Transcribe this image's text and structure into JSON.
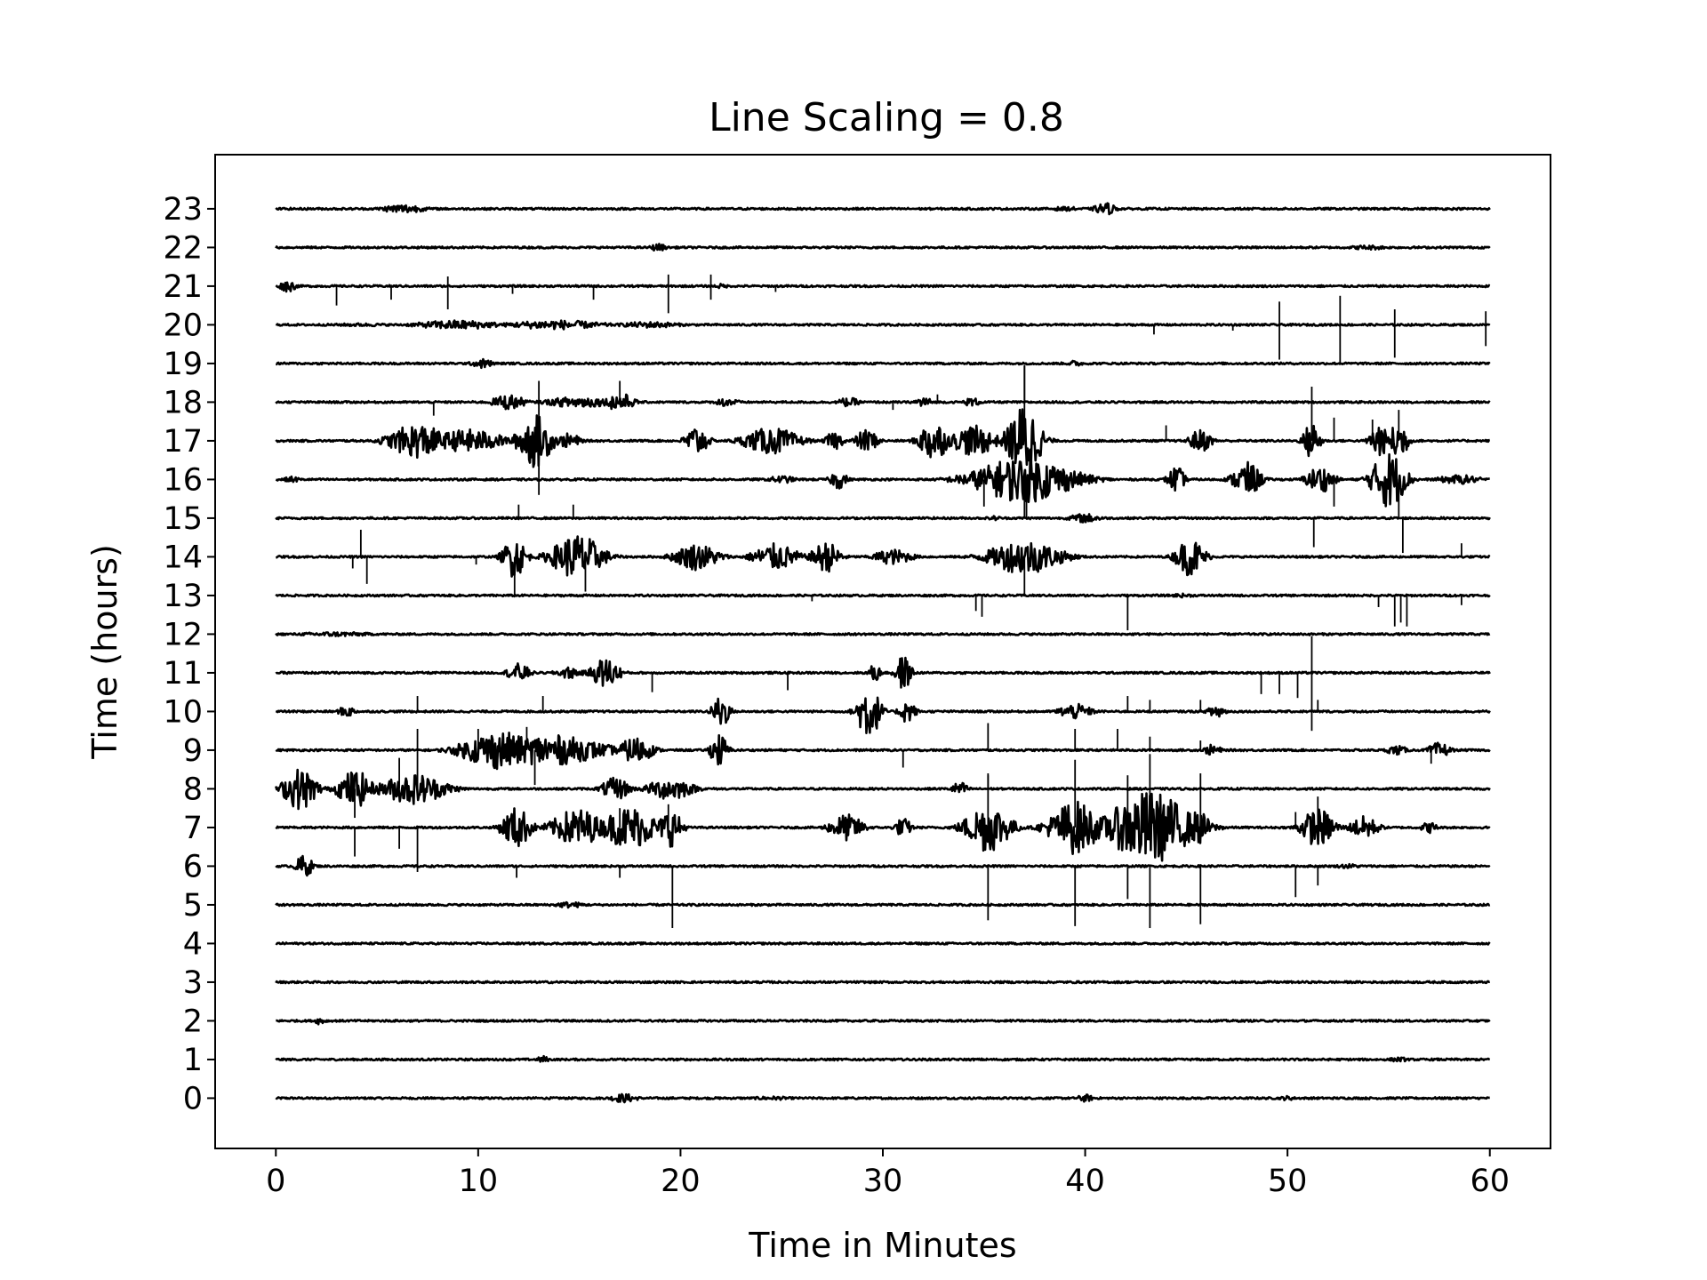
{
  "chart_data": {
    "type": "line",
    "title": "Line Scaling = 0.8",
    "xlabel": "Time in Minutes",
    "ylabel": "Time (hours)",
    "xlim": [
      -3,
      63
    ],
    "ylim": [
      -1.3,
      24.4
    ],
    "x_ticks": [
      "0",
      "10",
      "20",
      "30",
      "40",
      "50",
      "60"
    ],
    "y_ticks": [
      "0",
      "1",
      "2",
      "3",
      "4",
      "5",
      "6",
      "7",
      "8",
      "9",
      "10",
      "11",
      "12",
      "13",
      "14",
      "15",
      "16",
      "17",
      "18",
      "19",
      "20",
      "21",
      "22",
      "23"
    ],
    "line_scaling": 0.8,
    "trace_color": "#000000",
    "x_range_minutes": [
      0,
      60
    ],
    "traces": [
      {
        "hour": 0,
        "bursts": [
          [
            17.2,
            0.12,
            0.5
          ],
          [
            24.5,
            0.05,
            0.8
          ],
          [
            40,
            0.1,
            0.3
          ],
          [
            50,
            0.06,
            0.3
          ]
        ],
        "spikes": []
      },
      {
        "hour": 1,
        "bursts": [
          [
            13.2,
            0.1,
            0.2
          ],
          [
            55.5,
            0.06,
            0.4
          ]
        ],
        "spikes": []
      },
      {
        "hour": 2,
        "bursts": [
          [
            2.2,
            0.1,
            0.2
          ]
        ],
        "spikes": []
      },
      {
        "hour": 3,
        "bursts": [],
        "spikes": []
      },
      {
        "hour": 4,
        "bursts": [],
        "spikes": []
      },
      {
        "hour": 5,
        "bursts": [
          [
            14.5,
            0.08,
            0.6
          ]
        ],
        "spikes": []
      },
      {
        "hour": 6,
        "bursts": [
          [
            1.4,
            0.3,
            0.3
          ],
          [
            53,
            0.06,
            0.5
          ]
        ],
        "spikes": [
          [
            11.9,
            -0.3
          ],
          [
            17,
            -0.3
          ],
          [
            19.6,
            -1.6
          ],
          [
            35.2,
            -1.4
          ],
          [
            39.5,
            -1.55
          ],
          [
            42.1,
            -0.85
          ],
          [
            43.2,
            -1.6
          ],
          [
            45.7,
            -1.5
          ],
          [
            50.4,
            -0.8
          ],
          [
            51.5,
            -0.5
          ]
        ]
      },
      {
        "hour": 7,
        "bursts": [
          [
            11.9,
            0.55,
            0.5
          ],
          [
            14.9,
            0.5,
            0.9
          ],
          [
            17.5,
            0.55,
            1.0
          ],
          [
            19.5,
            0.5,
            0.4
          ],
          [
            28.2,
            0.35,
            0.6
          ],
          [
            31,
            0.25,
            0.3
          ],
          [
            35.2,
            0.65,
            0.8
          ],
          [
            39.5,
            0.7,
            0.9
          ],
          [
            43.2,
            0.95,
            1.5
          ],
          [
            45.6,
            0.45,
            0.4
          ],
          [
            51.5,
            0.5,
            0.6
          ],
          [
            53.8,
            0.3,
            0.5
          ],
          [
            57,
            0.15,
            0.3
          ]
        ],
        "spikes": [
          [
            3.9,
            -0.75
          ],
          [
            6.1,
            -0.55
          ],
          [
            7,
            -1.15
          ],
          [
            17,
            0.5
          ],
          [
            19.4,
            0.6
          ],
          [
            35.2,
            1.4
          ],
          [
            39.5,
            1.75
          ],
          [
            42.1,
            1.35
          ],
          [
            43.2,
            1.9
          ],
          [
            45.7,
            1.4
          ],
          [
            50.4,
            0.4
          ],
          [
            51.5,
            0.8
          ]
        ]
      },
      {
        "hour": 8,
        "bursts": [
          [
            1.2,
            0.55,
            0.6
          ],
          [
            3.9,
            0.5,
            0.6
          ],
          [
            6.8,
            0.4,
            1.2
          ],
          [
            16.8,
            0.3,
            0.5
          ],
          [
            19.5,
            0.3,
            0.8
          ],
          [
            33.8,
            0.18,
            0.3
          ]
        ],
        "spikes": [
          [
            6.1,
            0.8
          ],
          [
            7,
            1.55
          ],
          [
            3.9,
            -0.75
          ],
          [
            35.2,
            0.35
          ]
        ]
      },
      {
        "hour": 9,
        "bursts": [
          [
            11,
            0.5,
            1.3
          ],
          [
            13.5,
            0.4,
            2.0
          ],
          [
            17.8,
            0.35,
            0.6
          ],
          [
            21.9,
            0.45,
            0.3
          ],
          [
            46.3,
            0.15,
            0.3
          ],
          [
            57.5,
            0.2,
            0.4
          ],
          [
            55.4,
            0.12,
            0.4
          ]
        ],
        "spikes": [
          [
            10,
            0.55
          ],
          [
            12.4,
            0.6
          ],
          [
            12.8,
            -0.9
          ],
          [
            31,
            -0.45
          ],
          [
            35.2,
            0.7
          ],
          [
            39.5,
            0.55
          ],
          [
            41.6,
            0.55
          ],
          [
            43.2,
            0.35
          ],
          [
            45.7,
            0.25
          ],
          [
            57.1,
            -0.35
          ]
        ]
      },
      {
        "hour": 10,
        "bursts": [
          [
            29.3,
            0.75,
            0.4
          ],
          [
            22,
            0.45,
            0.3
          ],
          [
            31.2,
            0.3,
            0.3
          ],
          [
            3.5,
            0.15,
            0.3
          ],
          [
            39.5,
            0.2,
            0.6
          ],
          [
            46.5,
            0.2,
            0.3
          ]
        ],
        "spikes": [
          [
            7,
            0.4
          ],
          [
            13.2,
            0.4
          ],
          [
            42.1,
            0.4
          ],
          [
            43.2,
            0.3
          ],
          [
            45.7,
            0.3
          ],
          [
            51.5,
            0.3
          ]
        ]
      },
      {
        "hour": 11,
        "bursts": [
          [
            16.3,
            0.4,
            0.5
          ],
          [
            12,
            0.25,
            0.4
          ],
          [
            14.5,
            0.15,
            0.5
          ],
          [
            31,
            0.45,
            0.3
          ],
          [
            29.6,
            0.25,
            0.2
          ]
        ],
        "spikes": [
          [
            18.6,
            -0.5
          ],
          [
            25.3,
            -0.45
          ],
          [
            48.7,
            -0.55
          ],
          [
            49.6,
            -0.55
          ],
          [
            50.5,
            -0.65
          ],
          [
            51.2,
            0.95
          ],
          [
            51.2,
            -1.5
          ]
        ]
      },
      {
        "hour": 12,
        "bursts": [
          [
            3,
            0.06,
            1.5
          ]
        ],
        "spikes": []
      },
      {
        "hour": 13,
        "bursts": [
          [
            44.8,
            0.05,
            0.5
          ]
        ],
        "spikes": [
          [
            34.6,
            -0.4
          ],
          [
            34.9,
            -0.55
          ],
          [
            42.1,
            -0.9
          ],
          [
            54.5,
            -0.3
          ],
          [
            55.3,
            -0.8
          ],
          [
            55.6,
            -0.7
          ],
          [
            55.9,
            -0.8
          ],
          [
            58.6,
            -0.25
          ],
          [
            26.5,
            -0.15
          ]
        ]
      },
      {
        "hour": 14,
        "bursts": [
          [
            11.8,
            0.55,
            0.4
          ],
          [
            14.9,
            0.6,
            0.9
          ],
          [
            20.8,
            0.35,
            0.8
          ],
          [
            24.7,
            0.35,
            0.8
          ],
          [
            27.2,
            0.4,
            0.5
          ],
          [
            30.5,
            0.2,
            0.7
          ],
          [
            37,
            0.45,
            1.3
          ],
          [
            45.2,
            0.5,
            0.5
          ]
        ],
        "spikes": [
          [
            3.8,
            -0.3
          ],
          [
            4.2,
            0.7
          ],
          [
            4.5,
            -0.7
          ],
          [
            11.8,
            -1.0
          ],
          [
            15.3,
            -0.9
          ],
          [
            37,
            -1.0
          ],
          [
            58.6,
            0.35
          ],
          [
            9.9,
            -0.2
          ]
        ]
      },
      {
        "hour": 15,
        "bursts": [
          [
            40,
            0.12,
            0.6
          ],
          [
            35.5,
            0.06,
            0.3
          ]
        ],
        "spikes": [
          [
            12,
            0.35
          ],
          [
            14.7,
            0.35
          ],
          [
            51.3,
            -0.75
          ],
          [
            55.7,
            -0.9
          ],
          [
            37.1,
            0.5
          ]
        ]
      },
      {
        "hour": 16,
        "bursts": [
          [
            37,
            0.6,
            1.8
          ],
          [
            44.5,
            0.35,
            0.3
          ],
          [
            48,
            0.45,
            0.5
          ],
          [
            51.6,
            0.35,
            0.5
          ],
          [
            55,
            0.75,
            0.6
          ],
          [
            58.5,
            0.12,
            0.8
          ],
          [
            27.8,
            0.25,
            0.3
          ],
          [
            25,
            0.1,
            0.5
          ],
          [
            0.8,
            0.08,
            0.3
          ]
        ],
        "spikes": [
          [
            37,
            -1.0
          ],
          [
            35,
            -0.7
          ],
          [
            52.3,
            -0.7
          ],
          [
            55.5,
            -1.0
          ]
        ]
      },
      {
        "hour": 17,
        "bursts": [
          [
            7,
            0.45,
            1.0
          ],
          [
            9.5,
            0.3,
            1.3
          ],
          [
            12.8,
            0.7,
            0.6
          ],
          [
            14.5,
            0.2,
            0.4
          ],
          [
            20.8,
            0.4,
            0.4
          ],
          [
            24.5,
            0.35,
            1.0
          ],
          [
            27.6,
            0.25,
            0.3
          ],
          [
            29.2,
            0.3,
            0.4
          ],
          [
            32.5,
            0.55,
            0.5
          ],
          [
            34.5,
            0.4,
            0.8
          ],
          [
            37,
            0.95,
            0.6
          ],
          [
            45.7,
            0.3,
            0.4
          ],
          [
            51.2,
            0.5,
            0.3
          ],
          [
            54.5,
            0.5,
            0.3
          ],
          [
            55.5,
            0.6,
            0.3
          ]
        ],
        "spikes": [
          [
            13,
            -1.4
          ],
          [
            13,
            1.55
          ],
          [
            37,
            1.95
          ],
          [
            51.2,
            1.4
          ],
          [
            55.5,
            0.8
          ],
          [
            52.3,
            0.6
          ],
          [
            44,
            0.4
          ],
          [
            54.2,
            0.55
          ]
        ]
      },
      {
        "hour": 18,
        "bursts": [
          [
            11.5,
            0.2,
            0.6
          ],
          [
            15,
            0.15,
            1.2
          ],
          [
            17,
            0.25,
            0.5
          ],
          [
            22.3,
            0.12,
            0.4
          ],
          [
            28.3,
            0.12,
            0.4
          ],
          [
            34.4,
            0.12,
            0.3
          ],
          [
            32,
            0.15,
            0.3
          ]
        ],
        "spikes": [
          [
            7.8,
            -0.35
          ],
          [
            17,
            0.55
          ],
          [
            30.5,
            -0.2
          ],
          [
            37,
            0.95
          ],
          [
            32.7,
            0.2
          ]
        ]
      },
      {
        "hour": 19,
        "bursts": [
          [
            10.2,
            0.12,
            0.4
          ],
          [
            39.5,
            0.08,
            0.3
          ]
        ],
        "spikes": []
      },
      {
        "hour": 20,
        "bursts": [
          [
            9,
            0.12,
            1.6
          ],
          [
            13.8,
            0.12,
            1.8
          ],
          [
            18.5,
            0.08,
            1.2
          ],
          [
            4.2,
            0.04,
            1.5
          ]
        ],
        "spikes": [
          [
            43.4,
            -0.25
          ],
          [
            49.6,
            0.6
          ],
          [
            49.6,
            -0.9
          ],
          [
            52.6,
            0.75
          ],
          [
            52.6,
            -1.0
          ],
          [
            55.3,
            0.4
          ],
          [
            55.3,
            -0.85
          ],
          [
            59.8,
            0.35
          ],
          [
            59.8,
            -0.55
          ],
          [
            47.3,
            -0.15
          ]
        ]
      },
      {
        "hour": 21,
        "bursts": [
          [
            0.6,
            0.15,
            0.3
          ],
          [
            22,
            0.06,
            0.3
          ]
        ],
        "spikes": [
          [
            3,
            -0.5
          ],
          [
            5.7,
            -0.35
          ],
          [
            8.5,
            0.25
          ],
          [
            8.5,
            -0.6
          ],
          [
            11.7,
            -0.2
          ],
          [
            15.7,
            -0.35
          ],
          [
            19.4,
            0.3
          ],
          [
            19.4,
            -0.7
          ],
          [
            21.5,
            0.3
          ],
          [
            21.5,
            -0.35
          ],
          [
            24.7,
            -0.15
          ]
        ]
      },
      {
        "hour": 22,
        "bursts": [
          [
            18.9,
            0.1,
            0.3
          ],
          [
            54,
            0.06,
            0.8
          ]
        ],
        "spikes": []
      },
      {
        "hour": 23,
        "bursts": [
          [
            6.3,
            0.12,
            0.8
          ],
          [
            41,
            0.16,
            0.4
          ],
          [
            39,
            0.05,
            0.8
          ]
        ],
        "spikes": []
      }
    ]
  }
}
